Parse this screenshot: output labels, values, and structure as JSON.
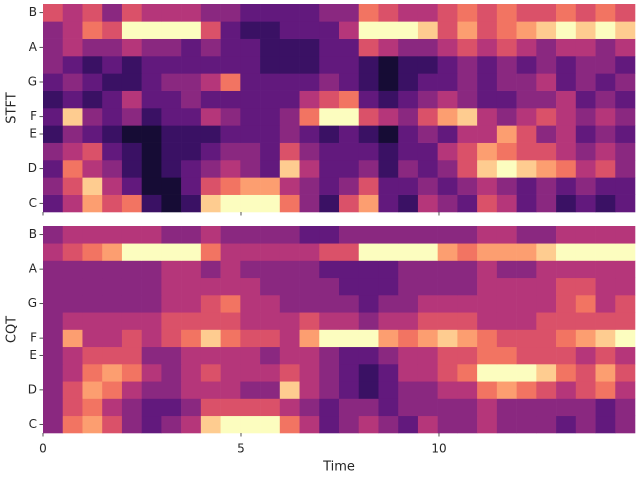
{
  "chart_data": [
    {
      "type": "heatmap",
      "ylabel": "STFT",
      "colormap": "magma",
      "xlim": [
        0,
        14.95
      ],
      "xticks": [
        0,
        5,
        10
      ],
      "xtick_labels": false,
      "ylim": [
        -0.5,
        11.5
      ],
      "yticks": [
        {
          "value": 0,
          "label": "C"
        },
        {
          "value": 2,
          "label": "D"
        },
        {
          "value": 4,
          "label": "E"
        },
        {
          "value": 5,
          "label": "F"
        },
        {
          "value": 7,
          "label": "G"
        },
        {
          "value": 9,
          "label": "A"
        },
        {
          "value": 11,
          "label": "B"
        }
      ],
      "values": [
        [
          0.3,
          0.5,
          0.8,
          0.6,
          0.7,
          0.2,
          0.1,
          0.2,
          0.9,
          1.0,
          1.0,
          1.0,
          0.7,
          0.4,
          0.2,
          0.6,
          0.8,
          0.3,
          0.2,
          0.5,
          0.4,
          0.3,
          0.6,
          0.5,
          0.3,
          0.4,
          0.2,
          0.3,
          0.2,
          0.3
        ],
        [
          0.4,
          0.6,
          0.9,
          0.5,
          0.3,
          0.1,
          0.1,
          0.3,
          0.6,
          0.7,
          0.8,
          0.8,
          0.5,
          0.4,
          0.3,
          0.4,
          0.6,
          0.3,
          0.3,
          0.4,
          0.3,
          0.4,
          0.5,
          0.4,
          0.3,
          0.4,
          0.3,
          0.4,
          0.3,
          0.3
        ],
        [
          0.3,
          0.7,
          0.5,
          0.4,
          0.2,
          0.1,
          0.2,
          0.3,
          0.4,
          0.5,
          0.4,
          0.3,
          0.9,
          0.5,
          0.3,
          0.3,
          0.4,
          0.2,
          0.4,
          0.3,
          0.4,
          0.6,
          0.9,
          1.0,
          0.9,
          0.8,
          0.7,
          0.5,
          0.6,
          0.4
        ],
        [
          0.4,
          0.5,
          0.6,
          0.3,
          0.2,
          0.1,
          0.2,
          0.2,
          0.3,
          0.4,
          0.4,
          0.3,
          0.6,
          0.4,
          0.3,
          0.3,
          0.3,
          0.2,
          0.3,
          0.3,
          0.5,
          0.6,
          0.8,
          0.7,
          0.6,
          0.6,
          0.5,
          0.4,
          0.5,
          0.4
        ],
        [
          0.2,
          0.4,
          0.3,
          0.2,
          0.1,
          0.1,
          0.2,
          0.2,
          0.2,
          0.3,
          0.3,
          0.3,
          0.4,
          0.3,
          0.2,
          0.3,
          0.2,
          0.1,
          0.3,
          0.4,
          0.3,
          0.5,
          0.5,
          0.8,
          0.6,
          0.4,
          0.5,
          0.3,
          0.4,
          0.3
        ],
        [
          0.3,
          0.9,
          0.4,
          0.3,
          0.4,
          0.2,
          0.3,
          0.3,
          0.5,
          0.4,
          0.3,
          0.3,
          0.4,
          0.7,
          1.0,
          1.0,
          0.6,
          0.5,
          0.4,
          0.6,
          0.8,
          0.9,
          0.5,
          0.4,
          0.5,
          0.6,
          0.5,
          0.4,
          0.5,
          0.4
        ],
        [
          0.2,
          0.3,
          0.2,
          0.3,
          0.5,
          0.3,
          0.3,
          0.4,
          0.3,
          0.3,
          0.3,
          0.3,
          0.3,
          0.5,
          0.6,
          0.7,
          0.3,
          0.2,
          0.3,
          0.4,
          0.5,
          0.4,
          0.3,
          0.3,
          0.4,
          0.4,
          0.5,
          0.3,
          0.4,
          0.3
        ],
        [
          0.3,
          0.4,
          0.3,
          0.2,
          0.2,
          0.3,
          0.4,
          0.4,
          0.5,
          0.7,
          0.3,
          0.3,
          0.3,
          0.3,
          0.4,
          0.3,
          0.2,
          0.1,
          0.2,
          0.3,
          0.3,
          0.4,
          0.3,
          0.4,
          0.4,
          0.5,
          0.3,
          0.4,
          0.3,
          0.4
        ],
        [
          0.4,
          0.3,
          0.2,
          0.3,
          0.2,
          0.3,
          0.3,
          0.3,
          0.3,
          0.3,
          0.3,
          0.2,
          0.2,
          0.2,
          0.3,
          0.3,
          0.2,
          0.1,
          0.2,
          0.2,
          0.3,
          0.4,
          0.3,
          0.4,
          0.3,
          0.4,
          0.3,
          0.4,
          0.4,
          0.3
        ],
        [
          0.4,
          0.5,
          0.4,
          0.4,
          0.5,
          0.4,
          0.4,
          0.3,
          0.4,
          0.3,
          0.3,
          0.2,
          0.2,
          0.2,
          0.3,
          0.3,
          0.6,
          0.5,
          0.4,
          0.4,
          0.5,
          0.6,
          0.5,
          0.6,
          0.5,
          0.4,
          0.5,
          0.5,
          0.4,
          0.5
        ],
        [
          0.4,
          0.5,
          0.7,
          0.6,
          1.0,
          1.0,
          1.0,
          1.0,
          0.6,
          0.3,
          0.2,
          0.2,
          0.3,
          0.3,
          0.3,
          0.5,
          1.0,
          1.0,
          1.0,
          0.9,
          0.6,
          0.8,
          0.6,
          0.7,
          0.8,
          0.9,
          1.0,
          0.9,
          1.0,
          0.9
        ],
        [
          0.6,
          0.5,
          0.6,
          0.4,
          0.6,
          0.5,
          0.5,
          0.5,
          0.4,
          0.4,
          0.3,
          0.3,
          0.3,
          0.3,
          0.4,
          0.4,
          0.7,
          0.6,
          0.5,
          0.5,
          0.6,
          0.7,
          0.6,
          0.7,
          0.6,
          0.6,
          0.7,
          0.6,
          0.7,
          0.6
        ]
      ]
    },
    {
      "type": "heatmap",
      "ylabel": "CQT",
      "xlabel": "Time",
      "colormap": "magma",
      "xlim": [
        0,
        14.95
      ],
      "xticks": [
        0,
        5,
        10
      ],
      "xtick_labels": true,
      "ylim": [
        -0.5,
        11.5
      ],
      "yticks": [
        {
          "value": 0,
          "label": "C"
        },
        {
          "value": 2,
          "label": "D"
        },
        {
          "value": 4,
          "label": "E"
        },
        {
          "value": 5,
          "label": "F"
        },
        {
          "value": 7,
          "label": "G"
        },
        {
          "value": 9,
          "label": "A"
        },
        {
          "value": 11,
          "label": "B"
        }
      ],
      "values": [
        [
          0.4,
          0.7,
          0.8,
          0.6,
          0.4,
          0.3,
          0.4,
          0.5,
          0.9,
          1.0,
          1.0,
          1.0,
          0.7,
          0.5,
          0.3,
          0.4,
          0.5,
          0.4,
          0.3,
          0.5,
          0.4,
          0.4,
          0.5,
          0.4,
          0.4,
          0.4,
          0.3,
          0.4,
          0.3,
          0.4
        ],
        [
          0.4,
          0.6,
          0.7,
          0.5,
          0.4,
          0.3,
          0.3,
          0.4,
          0.6,
          0.6,
          0.6,
          0.6,
          0.5,
          0.4,
          0.3,
          0.4,
          0.4,
          0.3,
          0.4,
          0.4,
          0.4,
          0.4,
          0.5,
          0.4,
          0.4,
          0.4,
          0.4,
          0.4,
          0.3,
          0.4
        ],
        [
          0.4,
          0.6,
          0.8,
          0.7,
          0.5,
          0.4,
          0.4,
          0.5,
          0.5,
          0.5,
          0.4,
          0.4,
          0.9,
          0.5,
          0.4,
          0.3,
          0.2,
          0.3,
          0.4,
          0.4,
          0.5,
          0.5,
          0.7,
          0.8,
          0.7,
          0.6,
          0.5,
          0.6,
          0.7,
          0.5
        ],
        [
          0.4,
          0.5,
          0.7,
          0.8,
          0.7,
          0.5,
          0.4,
          0.5,
          0.6,
          0.5,
          0.5,
          0.5,
          0.6,
          0.5,
          0.4,
          0.3,
          0.2,
          0.3,
          0.5,
          0.5,
          0.6,
          0.7,
          1.0,
          1.0,
          1.0,
          0.9,
          0.7,
          0.6,
          0.8,
          0.6
        ],
        [
          0.4,
          0.5,
          0.6,
          0.6,
          0.6,
          0.4,
          0.4,
          0.5,
          0.5,
          0.5,
          0.5,
          0.4,
          0.5,
          0.5,
          0.4,
          0.3,
          0.3,
          0.4,
          0.5,
          0.5,
          0.6,
          0.6,
          0.7,
          0.7,
          0.6,
          0.6,
          0.6,
          0.5,
          0.6,
          0.5
        ],
        [
          0.4,
          0.8,
          0.5,
          0.5,
          0.6,
          0.5,
          0.6,
          0.7,
          0.9,
          0.7,
          0.6,
          0.6,
          0.5,
          0.8,
          1.0,
          1.0,
          1.0,
          0.8,
          0.7,
          0.8,
          0.9,
          0.8,
          0.7,
          0.6,
          0.6,
          0.6,
          0.7,
          0.8,
          0.9,
          1.0
        ],
        [
          0.4,
          0.5,
          0.5,
          0.5,
          0.5,
          0.5,
          0.6,
          0.6,
          0.6,
          0.6,
          0.5,
          0.5,
          0.5,
          0.6,
          0.5,
          0.5,
          0.4,
          0.5,
          0.5,
          0.6,
          0.6,
          0.6,
          0.5,
          0.5,
          0.5,
          0.6,
          0.6,
          0.6,
          0.6,
          0.6
        ],
        [
          0.4,
          0.4,
          0.4,
          0.4,
          0.4,
          0.4,
          0.5,
          0.5,
          0.6,
          0.7,
          0.5,
          0.5,
          0.4,
          0.4,
          0.4,
          0.4,
          0.3,
          0.4,
          0.4,
          0.5,
          0.5,
          0.5,
          0.5,
          0.5,
          0.5,
          0.5,
          0.6,
          0.7,
          0.5,
          0.6
        ],
        [
          0.4,
          0.4,
          0.4,
          0.4,
          0.4,
          0.4,
          0.5,
          0.5,
          0.5,
          0.5,
          0.5,
          0.4,
          0.4,
          0.4,
          0.4,
          0.3,
          0.3,
          0.3,
          0.4,
          0.4,
          0.4,
          0.4,
          0.5,
          0.5,
          0.5,
          0.5,
          0.6,
          0.6,
          0.5,
          0.5
        ],
        [
          0.4,
          0.4,
          0.4,
          0.4,
          0.4,
          0.4,
          0.5,
          0.5,
          0.4,
          0.5,
          0.4,
          0.4,
          0.4,
          0.4,
          0.3,
          0.3,
          0.3,
          0.3,
          0.4,
          0.4,
          0.4,
          0.4,
          0.5,
          0.4,
          0.4,
          0.5,
          0.5,
          0.5,
          0.5,
          0.5
        ],
        [
          0.5,
          0.6,
          0.7,
          0.8,
          1.0,
          1.0,
          1.0,
          1.0,
          0.7,
          0.5,
          0.5,
          0.5,
          0.5,
          0.5,
          0.6,
          0.6,
          1.0,
          1.0,
          1.0,
          1.0,
          0.8,
          0.7,
          0.8,
          0.8,
          0.8,
          0.9,
          1.0,
          1.0,
          1.0,
          1.0
        ],
        [
          0.4,
          0.5,
          0.5,
          0.5,
          0.5,
          0.5,
          0.4,
          0.4,
          0.5,
          0.4,
          0.4,
          0.4,
          0.4,
          0.3,
          0.3,
          0.4,
          0.4,
          0.4,
          0.4,
          0.4,
          0.4,
          0.4,
          0.5,
          0.5,
          0.4,
          0.4,
          0.5,
          0.5,
          0.5,
          0.5
        ]
      ]
    }
  ]
}
